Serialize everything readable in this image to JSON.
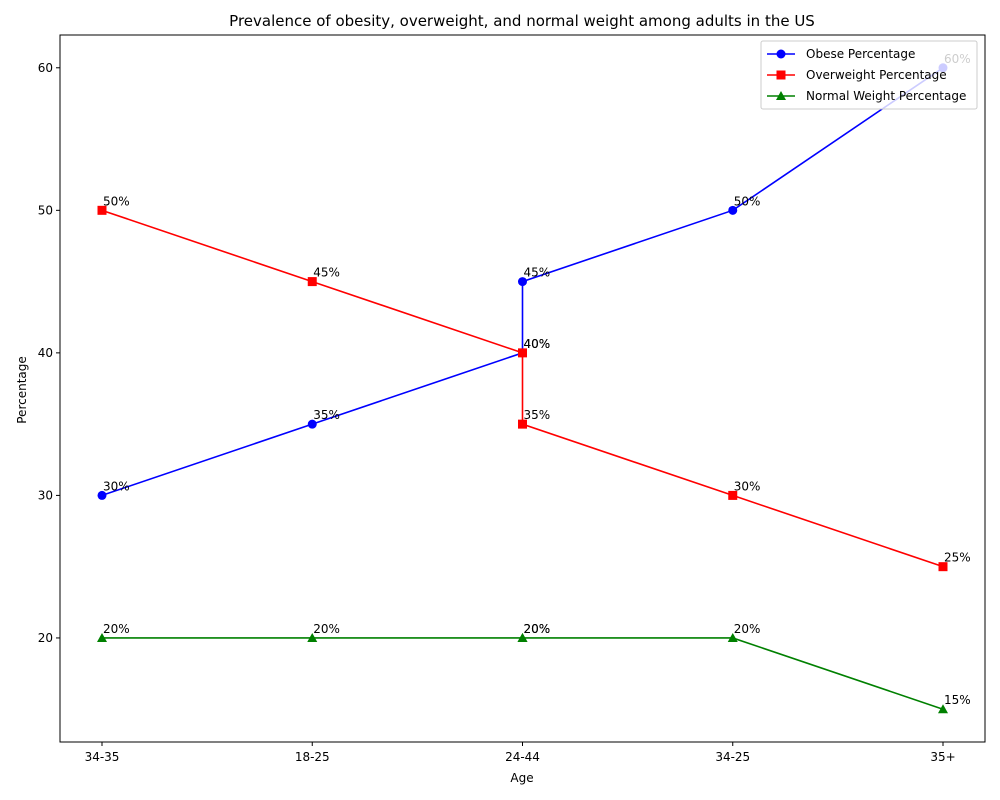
{
  "chart_data": {
    "type": "line",
    "title": "Prevalence of obesity, overweight, and normal weight among adults in the US",
    "xlabel": "Age",
    "ylabel": "Percentage",
    "categories": [
      "34-35",
      "18-25",
      "24-44",
      "24-44",
      "34-25",
      "35+"
    ],
    "x_tick_labels": [
      "34-35",
      "18-25",
      "24-44",
      "34-25",
      "35+"
    ],
    "ylim": [
      12.7,
      62.3
    ],
    "y_ticks": [
      20,
      30,
      40,
      50,
      60
    ],
    "grid": false,
    "legend_position": "top-right",
    "series": [
      {
        "name": "Obese Percentage",
        "color": "#0000ff",
        "marker": "circle",
        "x_index": [
          0,
          1,
          2,
          2,
          3,
          4
        ],
        "values": [
          30,
          35,
          40,
          45,
          50,
          60
        ],
        "labels": [
          "30%",
          "35%",
          "40%",
          "45%",
          "50%",
          "60%"
        ]
      },
      {
        "name": "Overweight Percentage",
        "color": "#ff0000",
        "marker": "square",
        "x_index": [
          0,
          1,
          2,
          2,
          3,
          4
        ],
        "values": [
          50,
          45,
          40,
          35,
          30,
          25
        ],
        "labels": [
          "50%",
          "45%",
          "40%",
          "35%",
          "30%",
          "25%"
        ]
      },
      {
        "name": "Normal Weight Percentage",
        "color": "#008000",
        "marker": "triangle",
        "x_index": [
          0,
          1,
          2,
          2,
          3,
          4
        ],
        "values": [
          20,
          20,
          20,
          20,
          20,
          15
        ],
        "labels": [
          "20%",
          "20%",
          "20%",
          "20%",
          "20%",
          "15%"
        ]
      }
    ]
  }
}
